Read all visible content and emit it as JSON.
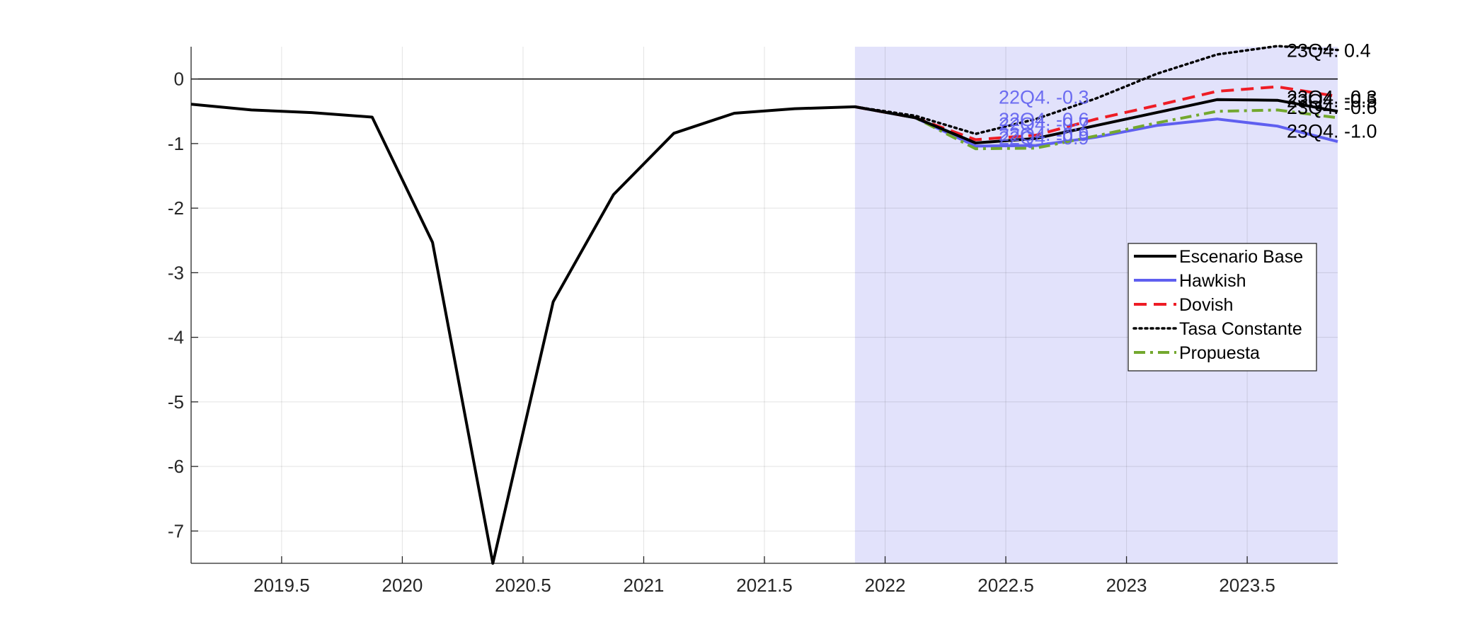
{
  "chart_data": {
    "type": "line",
    "title": "",
    "xlabel": "",
    "ylabel": "",
    "xlim": [
      2019.125,
      2023.875
    ],
    "ylim": [
      -7.5,
      0.5
    ],
    "grid": true,
    "xticks": [
      2019.5,
      2020,
      2020.5,
      2021,
      2021.5,
      2022,
      2022.5,
      2023,
      2023.5
    ],
    "xtick_labels": [
      "2019.5",
      "2020",
      "2020.5",
      "2021",
      "2021.5",
      "2022",
      "2022.5",
      "2023",
      "2023.5"
    ],
    "yticks": [
      0,
      -1,
      -2,
      -3,
      -4,
      -5,
      -6,
      -7
    ],
    "ytick_labels": [
      "0",
      "-1",
      "-2",
      "-3",
      "-4",
      "-5",
      "-6",
      "-7"
    ],
    "shaded_region": {
      "x_start": 2021.875,
      "x_end": 2023.875,
      "color": "#e2e2fb"
    },
    "zero_line": true,
    "legend": {
      "position": "center-right",
      "entries": [
        "Escenario Base",
        "Hawkish",
        "Dovish",
        "Tasa Constante",
        "Propuesta"
      ]
    },
    "series": [
      {
        "name": "Escenario Base",
        "color": "#000000",
        "dash": "solid",
        "x": [
          2019.125,
          2019.375,
          2019.625,
          2019.875,
          2020.125,
          2020.375,
          2020.625,
          2020.875,
          2021.125,
          2021.375,
          2021.625,
          2021.875,
          2022.125,
          2022.375,
          2022.625,
          2022.875,
          2023.125,
          2023.375,
          2023.625,
          2023.875
        ],
        "values": [
          -0.39,
          -0.48,
          -0.52,
          -0.59,
          -2.53,
          -7.5,
          -3.45,
          -1.79,
          -0.84,
          -0.53,
          -0.46,
          -0.43,
          -0.6,
          -0.99,
          -0.92,
          -0.72,
          -0.52,
          -0.32,
          -0.33,
          -0.5
        ]
      },
      {
        "name": "Hawkish",
        "color": "#5f5ff0",
        "dash": "solid",
        "x": [
          2021.875,
          2022.125,
          2022.375,
          2022.625,
          2022.875,
          2023.125,
          2023.375,
          2023.625,
          2023.875
        ],
        "values": [
          -0.43,
          -0.6,
          -1.04,
          -1.03,
          -0.9,
          -0.72,
          -0.62,
          -0.73,
          -0.97
        ]
      },
      {
        "name": "Dovish",
        "color": "#ee1c25",
        "dash": "dashed",
        "x": [
          2021.875,
          2022.125,
          2022.375,
          2022.625,
          2022.875,
          2023.125,
          2023.375,
          2023.625,
          2023.875
        ],
        "values": [
          -0.43,
          -0.6,
          -0.94,
          -0.87,
          -0.62,
          -0.41,
          -0.19,
          -0.12,
          -0.27
        ]
      },
      {
        "name": "Tasa Constante",
        "color": "#000000",
        "dash": "dotted",
        "x": [
          2021.875,
          2022.125,
          2022.375,
          2022.625,
          2022.875,
          2023.125,
          2023.375,
          2023.625,
          2023.875
        ],
        "values": [
          -0.43,
          -0.57,
          -0.85,
          -0.62,
          -0.3,
          0.08,
          0.38,
          0.51,
          0.45
        ]
      },
      {
        "name": "Propuesta",
        "color": "#73a82e",
        "dash": "dashdot",
        "x": [
          2021.875,
          2022.125,
          2022.375,
          2022.625,
          2022.875,
          2023.125,
          2023.375,
          2023.625,
          2023.875
        ],
        "values": [
          -0.43,
          -0.6,
          -1.08,
          -1.07,
          -0.88,
          -0.68,
          -0.5,
          -0.48,
          -0.6
        ]
      }
    ],
    "annotations": [
      {
        "text": "23Q4. 0.4",
        "x": 2023.875,
        "y": 0.45,
        "color": "#000000"
      },
      {
        "text": "23Q4. -0.3",
        "x": 2023.875,
        "y": -0.27,
        "color": "#000000"
      },
      {
        "text": "23Q4. -0.5",
        "x": 2023.875,
        "y": -0.33,
        "color": "#000000"
      },
      {
        "text": "23Q4. -0.6",
        "x": 2023.875,
        "y": -0.43,
        "color": "#000000"
      },
      {
        "text": "23Q4. -1.0",
        "x": 2023.875,
        "y": -0.8,
        "color": "#000000"
      },
      {
        "text": "22Q4. -0.3",
        "x": 2022.875,
        "y": -0.27,
        "color": "#5f5ff0"
      },
      {
        "text": "22Q4. -0.6",
        "x": 2022.875,
        "y": -0.62,
        "color": "#5f5ff0"
      },
      {
        "text": "22Q4. -0.7",
        "x": 2022.875,
        "y": -0.69,
        "color": "#5f5ff0"
      },
      {
        "text": "22Q4. -0.9",
        "x": 2022.875,
        "y": -0.85,
        "color": "#5f5ff0"
      },
      {
        "text": "22Q4. -0.9",
        "x": 2022.875,
        "y": -0.9,
        "color": "#5f5ff0"
      }
    ]
  }
}
